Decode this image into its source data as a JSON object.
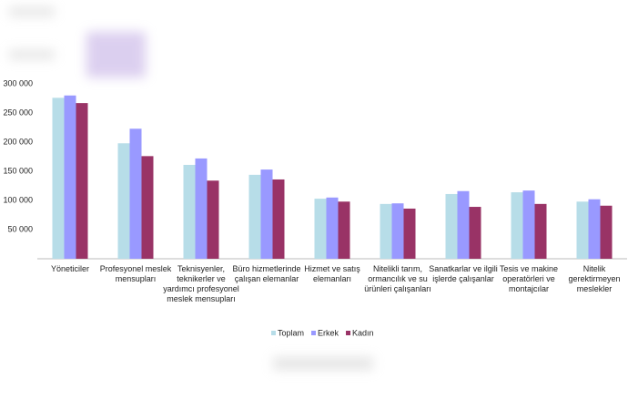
{
  "chart_data": {
    "type": "grouped-bar",
    "categories": [
      "Yöneticiler",
      "Profesyonel meslek mensupları",
      "Teknisyenler, teknikerler ve yardımcı profesyonel meslek mensupları",
      "Büro hizmetlerinde çalışan elemanlar",
      "Hizmet ve satış elemanları",
      "Nitelikli tarım, ormancılık ve su ürünleri çalışanları",
      "Sanatkarlar ve ilgili işlerde çalışanlar",
      "Tesis ve makine operatörleri ve montajcılar",
      "Nitelik gerektirmeyen meslekler"
    ],
    "series": [
      {
        "name": "Toplam",
        "color": "#b7dde8",
        "values": [
          276000,
          198000,
          161000,
          144000,
          103000,
          94000,
          111000,
          114000,
          98000
        ]
      },
      {
        "name": "Erkek",
        "color": "#9999ff",
        "values": [
          280000,
          223000,
          172000,
          153000,
          105000,
          95000,
          116000,
          117000,
          102000
        ]
      },
      {
        "name": "Kadın",
        "color": "#993366",
        "values": [
          267000,
          176000,
          134000,
          136000,
          98000,
          86000,
          89000,
          94000,
          91000
        ]
      }
    ],
    "ylim": [
      0,
      300000
    ],
    "yticks": [
      {
        "value": 50000,
        "label": "50 000"
      },
      {
        "value": 100000,
        "label": "100 000"
      },
      {
        "value": 150000,
        "label": "150 000"
      },
      {
        "value": 200000,
        "label": "200 000"
      },
      {
        "value": 250000,
        "label": "250 000"
      },
      {
        "value": 300000,
        "label": "300 000"
      }
    ],
    "grid": false,
    "legend": "bottom"
  }
}
